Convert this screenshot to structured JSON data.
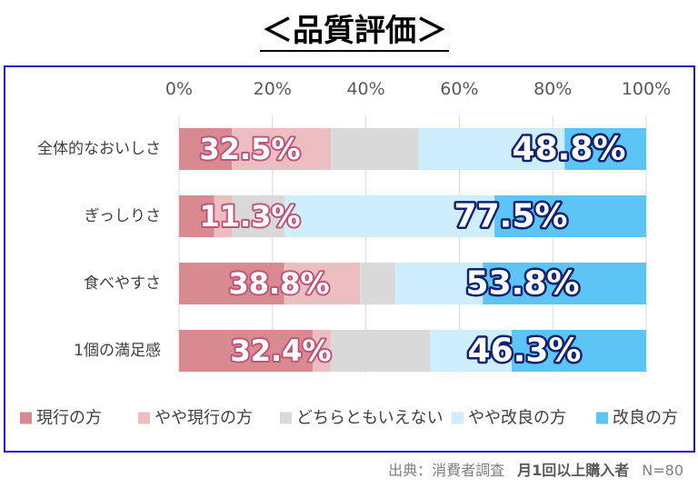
{
  "chart_data": {
    "type": "bar",
    "horizontal": true,
    "stacked": true,
    "title": "＜品質評価＞",
    "categories": [
      "全体的なおいしさ",
      "ぎっしりさ",
      "食べやすさ",
      "1個の満足感"
    ],
    "series": [
      {
        "name": "現行の方",
        "color": "#d88a90",
        "values": [
          11.3,
          7.5,
          22.5,
          28.6
        ]
      },
      {
        "name": "やや現行の方",
        "color": "#edbec1",
        "values": [
          21.3,
          3.8,
          16.3,
          3.8
        ]
      },
      {
        "name": "どちらともいえない",
        "color": "#d9d9d9",
        "values": [
          18.8,
          11.3,
          7.5,
          21.3
        ]
      },
      {
        "name": "やや改良の方",
        "color": "#cfeefd",
        "values": [
          31.3,
          45.0,
          18.8,
          17.5
        ]
      },
      {
        "name": "改良の方",
        "color": "#5cc5f5",
        "values": [
          17.5,
          32.5,
          35.0,
          28.8
        ]
      }
    ],
    "xlim": [
      0,
      100
    ],
    "xticks": [
      "0%",
      "20%",
      "40%",
      "60%",
      "80%",
      "100%"
    ],
    "grid": true,
    "legend": "bottom",
    "annotations": {
      "current_side": [
        "32.5%",
        "11.3%",
        "38.8%",
        "32.4%"
      ],
      "improved_side": [
        "48.8%",
        "77.5%",
        "53.8%",
        "46.3%"
      ]
    }
  },
  "source_note": {
    "source": "出典：消費者調査",
    "sample": "月1回以上購入者",
    "n": "N=80"
  }
}
